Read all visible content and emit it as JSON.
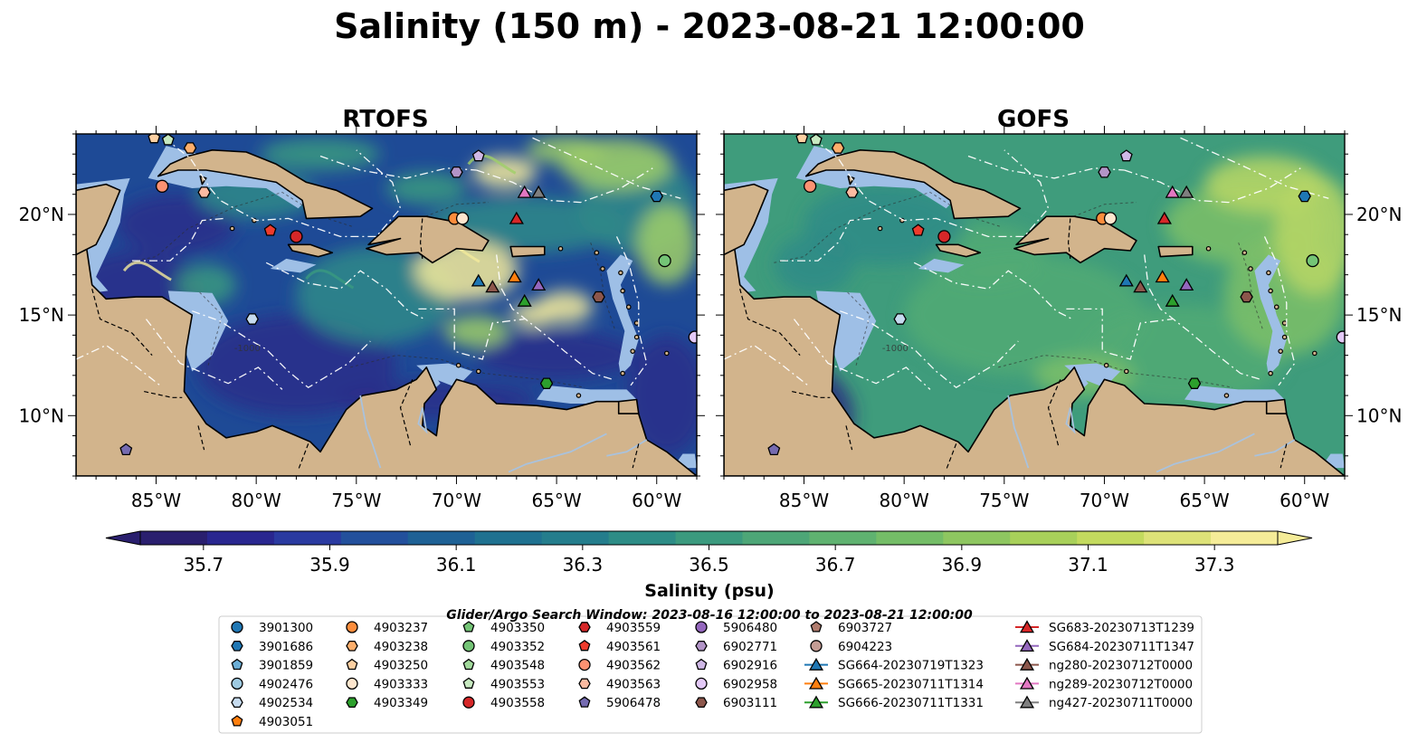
{
  "figure": {
    "suptitle": "Salinity (150 m) - 2023-08-21 12:00:00",
    "search_window": "Glider/Argo Search Window: 2023-08-16 12:00:00 to 2023-08-21 12:00:00"
  },
  "panels": [
    {
      "title": "RTOFS",
      "model": "rtofs"
    },
    {
      "title": "GOFS",
      "model": "gofs"
    }
  ],
  "map_extent": {
    "lon": [
      -89,
      -58
    ],
    "lat": [
      7,
      24
    ]
  },
  "lon_ticks": [
    {
      "value": -85,
      "label": "85°W"
    },
    {
      "value": -80,
      "label": "80°W"
    },
    {
      "value": -75,
      "label": "75°W"
    },
    {
      "value": -70,
      "label": "70°W"
    },
    {
      "value": -65,
      "label": "65°W"
    },
    {
      "value": -60,
      "label": "60°W"
    }
  ],
  "lat_ticks": [
    {
      "value": 20,
      "label": "20°N"
    },
    {
      "value": 15,
      "label": "15°N"
    },
    {
      "value": 10,
      "label": "10°N"
    }
  ],
  "colorbar": {
    "label": "Salinity (psu)",
    "min": 35.6,
    "max": 37.4,
    "step": 0.1,
    "tick_values": [
      35.7,
      35.9,
      36.1,
      36.3,
      36.5,
      36.7,
      36.9,
      37.1,
      37.3
    ],
    "tick_labels": [
      "35.7",
      "35.9",
      "36.1",
      "36.3",
      "36.5",
      "36.7",
      "36.9",
      "37.1",
      "37.3"
    ],
    "colors": [
      "#2a1f6e",
      "#29268f",
      "#2a3aa0",
      "#23509c",
      "#1e6195",
      "#1f7190",
      "#247d8c",
      "#2d8c86",
      "#3b9a7e",
      "#4da677",
      "#5fb270",
      "#74bd67",
      "#8ec660",
      "#a8d05a",
      "#c3da5e",
      "#dde278",
      "#f5ec98"
    ]
  },
  "ocean_colors": {
    "rtofs": {
      "base": "#1e4a96",
      "patches": [
        "#2a2d8a",
        "#2f8a88",
        "#f4eb9b",
        "#9fcf68",
        "#3a9a80"
      ]
    },
    "gofs": {
      "base": "#3f9c7c",
      "patches": [
        "#52aa74",
        "#7dc068",
        "#b9d765",
        "#2f8b87",
        "#2a2f80"
      ]
    }
  },
  "map_colors": {
    "land": "#d2b48c",
    "shelf": "#9ebfe6",
    "river": "#a9c2dd",
    "eez": "#ffffff"
  },
  "labels": {
    "rtofs_contour": "-1000",
    "gofs_contour": "-1000"
  },
  "stations": [
    {
      "id": "3901300",
      "kind": "argo",
      "marker": "circle",
      "color": "#1f77b4",
      "lon": null,
      "lat": null
    },
    {
      "id": "3901686",
      "kind": "argo",
      "marker": "hexagon",
      "color": "#1f77b4",
      "lon": -60.0,
      "lat": 20.9
    },
    {
      "id": "3901859",
      "kind": "argo",
      "marker": "pentagon",
      "color": "#6baed6",
      "lon": null,
      "lat": null
    },
    {
      "id": "4902476",
      "kind": "argo",
      "marker": "circle",
      "color": "#9ecae1",
      "lon": null,
      "lat": null
    },
    {
      "id": "4902534",
      "kind": "argo",
      "marker": "hexagon",
      "color": "#c6dbef",
      "lon": -80.2,
      "lat": 14.8
    },
    {
      "id": "4903051",
      "kind": "argo",
      "marker": "pentagon",
      "color": "#ff7f0e",
      "lon": null,
      "lat": null
    },
    {
      "id": "4903237",
      "kind": "argo",
      "marker": "circle",
      "color": "#fd8d3c",
      "lon": -70.1,
      "lat": 19.8
    },
    {
      "id": "4903238",
      "kind": "argo",
      "marker": "hexagon",
      "color": "#fdae6b",
      "lon": -83.3,
      "lat": 23.3
    },
    {
      "id": "4903250",
      "kind": "argo",
      "marker": "pentagon",
      "color": "#fdd0a2",
      "lon": -85.1,
      "lat": 23.8
    },
    {
      "id": "4903333",
      "kind": "argo",
      "marker": "circle",
      "color": "#fee6ce",
      "lon": -69.7,
      "lat": 19.8
    },
    {
      "id": "4903349",
      "kind": "argo",
      "marker": "hexagon",
      "color": "#2ca02c",
      "lon": -65.5,
      "lat": 11.6
    },
    {
      "id": "4903350",
      "kind": "argo",
      "marker": "pentagon",
      "color": "#74c476",
      "lon": null,
      "lat": null
    },
    {
      "id": "4903352",
      "kind": "argo",
      "marker": "circle",
      "color": "#74c476",
      "lon": -59.6,
      "lat": 17.7
    },
    {
      "id": "4903548",
      "kind": "argo",
      "marker": "pentagon",
      "color": "#a1d99b",
      "lon": null,
      "lat": null
    },
    {
      "id": "4903553",
      "kind": "argo",
      "marker": "pentagon",
      "color": "#c7e9c0",
      "lon": -84.4,
      "lat": 23.7
    },
    {
      "id": "4903558",
      "kind": "argo",
      "marker": "circle",
      "color": "#d62728",
      "lon": -78.0,
      "lat": 18.9
    },
    {
      "id": "4903559",
      "kind": "argo",
      "marker": "hexagon",
      "color": "#d62728",
      "lon": null,
      "lat": null
    },
    {
      "id": "4903561",
      "kind": "argo",
      "marker": "pentagon",
      "color": "#ef3b2c",
      "lon": -79.3,
      "lat": 19.2
    },
    {
      "id": "4903562",
      "kind": "argo",
      "marker": "circle",
      "color": "#fc9272",
      "lon": -84.7,
      "lat": 21.4
    },
    {
      "id": "4903563",
      "kind": "argo",
      "marker": "hexagon",
      "color": "#fcbba1",
      "lon": -82.6,
      "lat": 21.1
    },
    {
      "id": "5906478",
      "kind": "argo",
      "marker": "pentagon",
      "color": "#756bb1",
      "lon": -86.5,
      "lat": 8.3
    },
    {
      "id": "5906480",
      "kind": "argo",
      "marker": "circle",
      "color": "#9467bd",
      "lon": null,
      "lat": null
    },
    {
      "id": "6902771",
      "kind": "argo",
      "marker": "hexagon",
      "color": "#b294c7",
      "lon": -70.0,
      "lat": 22.1
    },
    {
      "id": "6902916",
      "kind": "argo",
      "marker": "pentagon",
      "color": "#cfb8e6",
      "lon": -68.9,
      "lat": 22.9
    },
    {
      "id": "6902958",
      "kind": "argo",
      "marker": "circle",
      "color": "#e3c9f7",
      "lon": -58.1,
      "lat": 13.9
    },
    {
      "id": "6903111",
      "kind": "argo",
      "marker": "hexagon",
      "color": "#8c564b",
      "lon": -62.9,
      "lat": 15.9
    },
    {
      "id": "6903727",
      "kind": "argo",
      "marker": "pentagon",
      "color": "#b07c6e",
      "lon": null,
      "lat": null
    },
    {
      "id": "6904223",
      "kind": "argo",
      "marker": "circle",
      "color": "#c49c94",
      "lon": null,
      "lat": null
    },
    {
      "id": "SG664-20230719T1323",
      "kind": "glider",
      "marker": "triangle",
      "color": "#1f77b4",
      "lon": -68.9,
      "lat": 16.7
    },
    {
      "id": "SG665-20230711T1314",
      "kind": "glider",
      "marker": "triangle",
      "color": "#ff7f0e",
      "lon": -67.1,
      "lat": 16.9
    },
    {
      "id": "SG666-20230711T1331",
      "kind": "glider",
      "marker": "triangle",
      "color": "#2ca02c",
      "lon": -66.6,
      "lat": 15.7
    },
    {
      "id": "SG683-20230713T1239",
      "kind": "glider",
      "marker": "triangle",
      "color": "#d62728",
      "lon": -67.0,
      "lat": 19.8
    },
    {
      "id": "SG684-20230711T1347",
      "kind": "glider",
      "marker": "triangle",
      "color": "#9467bd",
      "lon": -65.9,
      "lat": 16.5
    },
    {
      "id": "ng280-20230712T0000",
      "kind": "glider",
      "marker": "triangle",
      "color": "#8c564b",
      "lon": -68.2,
      "lat": 16.4
    },
    {
      "id": "ng289-20230712T0000",
      "kind": "glider",
      "marker": "triangle",
      "color": "#e377c2",
      "lon": -66.6,
      "lat": 21.1
    },
    {
      "id": "ng427-20230711T0000",
      "kind": "glider",
      "marker": "triangle",
      "color": "#7f7f7f",
      "lon": -65.9,
      "lat": 21.1
    }
  ]
}
